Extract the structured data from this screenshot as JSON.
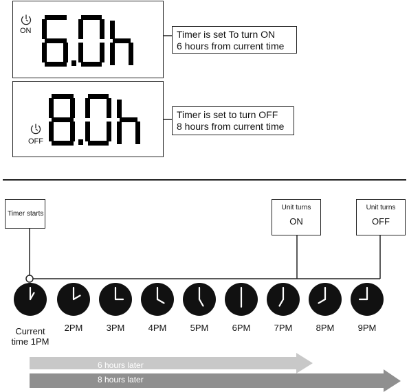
{
  "on_panel": {
    "icon": "clock-power-icon",
    "mode_label": "ON",
    "display_value": "6.0h",
    "callout_line1": "Timer is set To turn ON",
    "callout_line2": "6 hours from current time"
  },
  "off_panel": {
    "icon": "clock-power-icon",
    "mode_label": "OFF",
    "display_value": "8.0h",
    "callout_line1": "Timer is set to turn OFF",
    "callout_line2": "8 hours from current time"
  },
  "timeline": {
    "start_box": "Timer starts",
    "on_box_line1": "Unit turns",
    "on_box_line2": "ON",
    "off_box_line1": "Unit turns",
    "off_box_line2": "OFF",
    "clocks": [
      {
        "label_line1": "Current",
        "label_line2": "time 1PM",
        "hour": 1
      },
      {
        "label_line1": "2PM",
        "label_line2": "",
        "hour": 2
      },
      {
        "label_line1": "3PM",
        "label_line2": "",
        "hour": 3
      },
      {
        "label_line1": "4PM",
        "label_line2": "",
        "hour": 4
      },
      {
        "label_line1": "5PM",
        "label_line2": "",
        "hour": 5
      },
      {
        "label_line1": "6PM",
        "label_line2": "",
        "hour": 6
      },
      {
        "label_line1": "7PM",
        "label_line2": "",
        "hour": 7
      },
      {
        "label_line1": "8PM",
        "label_line2": "",
        "hour": 8
      },
      {
        "label_line1": "9PM",
        "label_line2": "",
        "hour": 9
      }
    ],
    "arrow_on_label": "6 hours later",
    "arrow_off_label": "8 hours later"
  },
  "colors": {
    "arrow_light": "#c8c8c8",
    "arrow_dark": "#8f8f8f",
    "clock_face": "#111111"
  }
}
